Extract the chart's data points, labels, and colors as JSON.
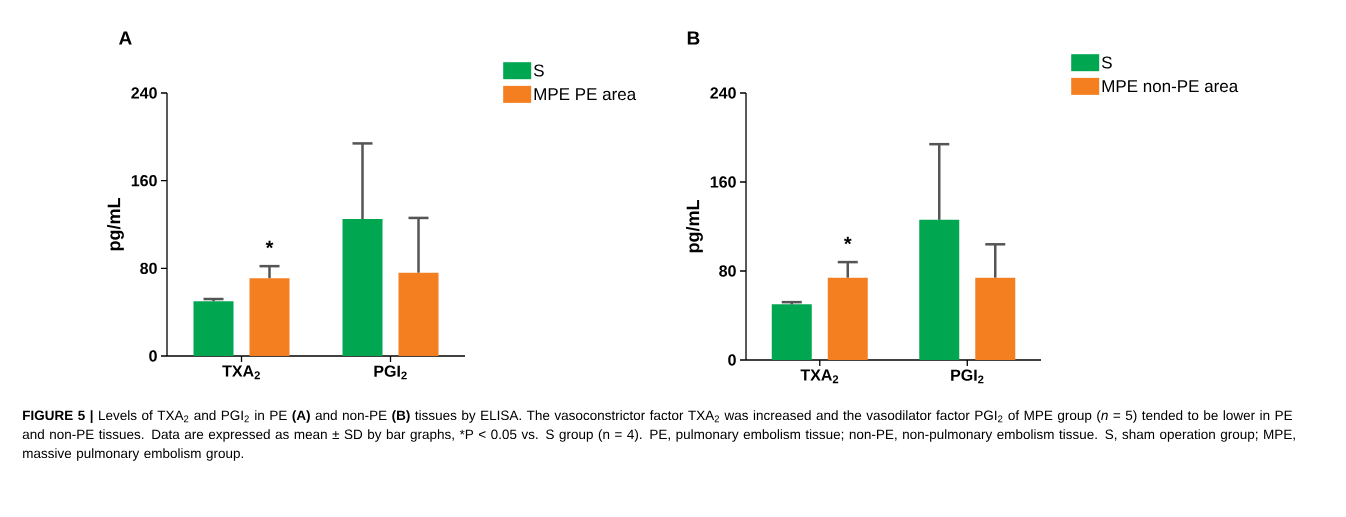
{
  "chart_data": [
    {
      "type": "bar",
      "title": "A",
      "ylabel": "pg/mL",
      "categories": [
        "TXA$_{2}$",
        "PGI$_{2}$"
      ],
      "series": [
        {
          "name": "S",
          "color": "#00a650",
          "values": [
            50,
            125
          ],
          "errors": [
            [
              50,
              52
            ],
            [
              125,
              194
            ]
          ]
        },
        {
          "name": "MPE  PE area",
          "color": "#f47f20",
          "values": [
            71,
            76
          ],
          "errors": [
            [
              71,
              82
            ],
            [
              76,
              126
            ]
          ]
        }
      ],
      "ylim": [
        0,
        240
      ],
      "yticks": [
        0,
        80,
        160,
        240
      ],
      "legend": "top right",
      "annotations": [
        "*",
        "**FIGURE 5 |** Levels of TXA$_{2}$ and PGI$_{2}$ in PE **(A)** and non-PE **(B)** tissues by ELISA. The vasoconstrictor factor TXA$_{2}$ was increased and the vasodilator factor PGI$_{2}$ of MPE group (*n* = 5) tended to be lower in PE and non-PE tissues.",
        "Data are expressed as mean ± SD by bar graphs, *P < 0.05 vs. S group (n = 4). PE, pulmonary embolism tissue; non-PE, non-pulmonary embolism tissue. S, sham operation group; MPE, massive pulmonary embolism group."
      ]
    },
    {
      "type": "bar",
      "title": "B",
      "ylabel": "pg/mL",
      "categories": [
        "TXA$_{2}$",
        "PGI$_{2}$"
      ],
      "series": [
        {
          "name": "S",
          "color": "#00a650",
          "values": [
            50,
            126
          ],
          "errors": [
            [
              50,
              52
            ],
            [
              126,
              194
            ]
          ]
        },
        {
          "name": "MPE  non-PE area",
          "color": "#f47f20",
          "values": [
            74,
            74
          ],
          "errors": [
            [
              74,
              88
            ],
            [
              74,
              104
            ]
          ]
        }
      ],
      "ylim": [
        0,
        240
      ],
      "yticks": [
        0,
        80,
        160,
        240
      ],
      "legend": "top right",
      "annotations": [
        "*"
      ]
    }
  ]
}
